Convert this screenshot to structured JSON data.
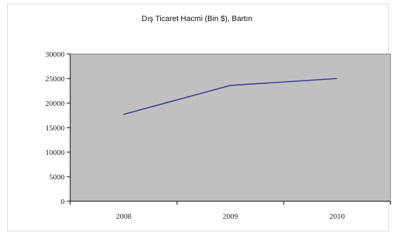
{
  "chart_data": {
    "type": "line",
    "title": "Dış Ticaret Hacmi (Bin $), Bartın",
    "xlabel": "",
    "ylabel": "",
    "categories": [
      "2008",
      "2009",
      "2010"
    ],
    "series": [
      {
        "values": [
          17700,
          23600,
          25000
        ]
      }
    ],
    "ylim": [
      0,
      30000
    ],
    "yticks": [
      "0",
      "5000",
      "10000",
      "15000",
      "20000",
      "25000",
      "30000"
    ],
    "grid": false,
    "legend": "none",
    "plot_background": "#c0c0c0",
    "line_color": "#3a3a8c"
  }
}
